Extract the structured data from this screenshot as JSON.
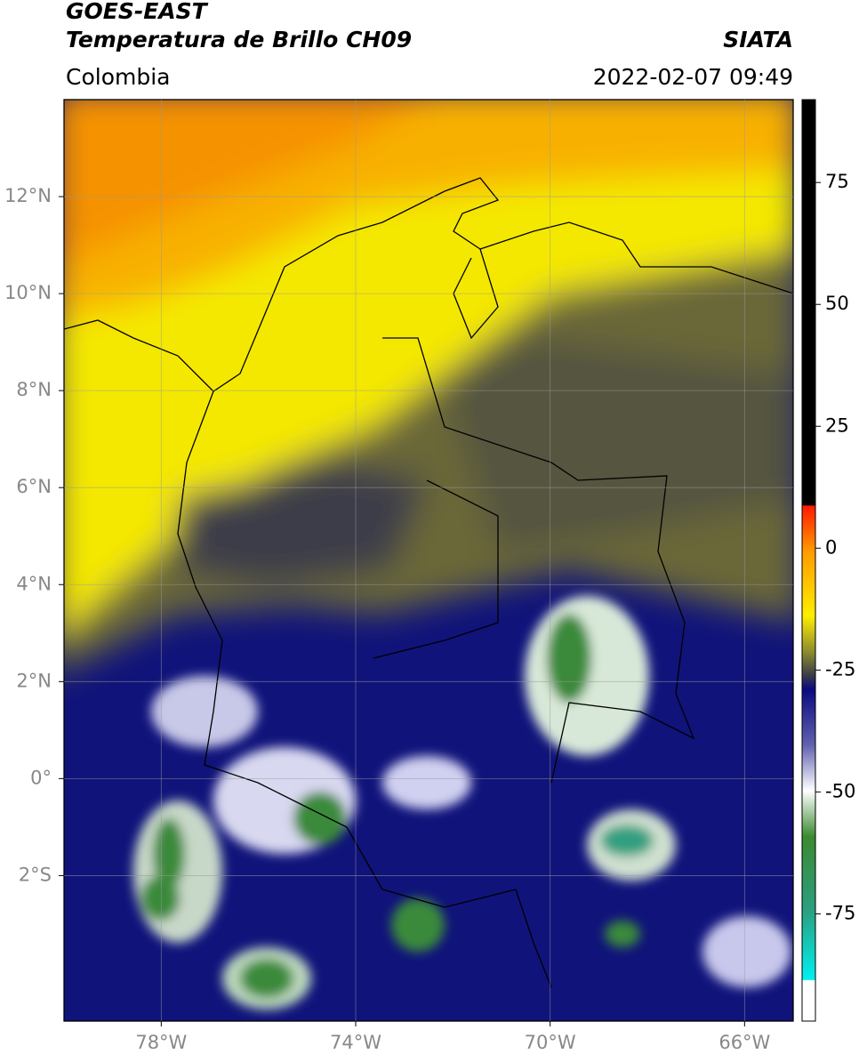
{
  "header": {
    "title": "GOES-EAST",
    "subtitle": "Temperatura de Brillo CH09",
    "region": "Colombia",
    "source": "SIATA",
    "datetime": "2022-02-07 09:49"
  },
  "map": {
    "xlim": [
      -80,
      -65
    ],
    "ylim": [
      -5,
      14
    ],
    "xticks": [
      {
        "value": -78,
        "label": "78°W"
      },
      {
        "value": -74,
        "label": "74°W"
      },
      {
        "value": -70,
        "label": "70°W"
      },
      {
        "value": -66,
        "label": "66°W"
      }
    ],
    "yticks": [
      {
        "value": 12,
        "label": "12°N"
      },
      {
        "value": 10,
        "label": "10°N"
      },
      {
        "value": 8,
        "label": "8°N"
      },
      {
        "value": 6,
        "label": "6°N"
      },
      {
        "value": 4,
        "label": "4°N"
      },
      {
        "value": 2,
        "label": "2°N"
      },
      {
        "value": 0,
        "label": "0°"
      },
      {
        "value": -2,
        "label": "2°S"
      }
    ],
    "grid": true
  },
  "colorbar": {
    "lim": [
      -97,
      92
    ],
    "ticks": [
      75,
      50,
      25,
      0,
      -25,
      -50,
      -75
    ]
  }
}
